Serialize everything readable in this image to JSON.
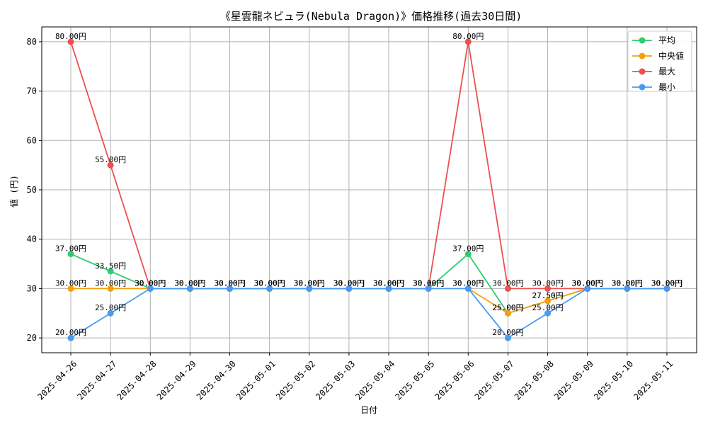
{
  "chart_data": {
    "type": "line",
    "title": "《星雲龍ネビュラ(Nebula Dragon)》価格推移(過去30日間)",
    "xlabel": "日付",
    "ylabel": "値 (円)",
    "ylim": [
      17,
      83
    ],
    "yticks": [
      20,
      30,
      40,
      50,
      60,
      70,
      80
    ],
    "grid": true,
    "legend_position": "top-right",
    "value_suffix": "円",
    "categories": [
      "2025-04-26",
      "2025-04-27",
      "2025-04-28",
      "2025-04-29",
      "2025-04-30",
      "2025-05-01",
      "2025-05-02",
      "2025-05-03",
      "2025-05-04",
      "2025-05-05",
      "2025-05-06",
      "2025-05-07",
      "2025-05-08",
      "2025-05-09",
      "2025-05-10",
      "2025-05-11"
    ],
    "series": [
      {
        "name": "平均",
        "color": "#2ecc71",
        "values": [
          37.0,
          33.5,
          30,
          30,
          30,
          30,
          30,
          30,
          30,
          30,
          37.0,
          25.0,
          27.5,
          30,
          30,
          30
        ]
      },
      {
        "name": "中央値",
        "color": "#f5a00a",
        "values": [
          30,
          30,
          30,
          30,
          30,
          30,
          30,
          30,
          30,
          30,
          30,
          25.0,
          27.5,
          30,
          30,
          30
        ]
      },
      {
        "name": "最大",
        "color": "#ef4f4f",
        "values": [
          80,
          55,
          30,
          30,
          30,
          30,
          30,
          30,
          30,
          30,
          80,
          30,
          30,
          30,
          30,
          30
        ]
      },
      {
        "name": "最小",
        "color": "#4a9af0",
        "values": [
          20,
          25,
          30,
          30,
          30,
          30,
          30,
          30,
          30,
          30,
          30,
          20,
          25,
          30,
          30,
          30
        ]
      }
    ]
  }
}
